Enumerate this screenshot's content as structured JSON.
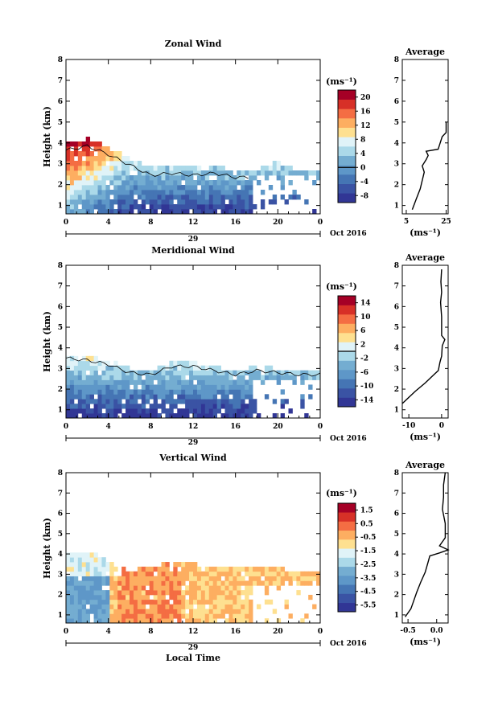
{
  "colormap": [
    "#313695",
    "#3a53a4",
    "#4575b4",
    "#5e97c8",
    "#74add1",
    "#abd9e9",
    "#e0f3f8",
    "#fee090",
    "#fdae61",
    "#f46d43",
    "#d73027",
    "#a50026"
  ],
  "chart_data": [
    {
      "type": "heatmap",
      "title": "Zonal Wind",
      "ylabel": "Height (km)",
      "xlabel": "",
      "x_ticks": [
        "0",
        "4",
        "8",
        "12",
        "16",
        "20",
        "0"
      ],
      "xlim": [
        0,
        24
      ],
      "y_ticks": [
        "1",
        "2",
        "3",
        "4",
        "5",
        "6",
        "7",
        "8"
      ],
      "ylim": [
        0.6,
        8.0
      ],
      "date_day": "29",
      "date_month": "Oct 2016",
      "unit": "(ms⁻¹)",
      "colorbar_ticks": [
        "20",
        "16",
        "12",
        "8",
        "4",
        "0",
        "-4",
        "-8"
      ],
      "colorbar_range": [
        -10,
        22
      ],
      "contour_value": 0,
      "echo_top": [
        [
          0,
          4.0
        ],
        [
          2,
          4.2
        ],
        [
          4,
          3.8
        ],
        [
          6,
          3.3
        ],
        [
          8,
          2.8
        ],
        [
          10,
          2.9
        ],
        [
          12,
          2.8
        ],
        [
          14,
          2.9
        ],
        [
          16,
          2.7
        ],
        [
          18,
          2.7
        ],
        [
          20,
          3.1
        ],
        [
          22,
          2.7
        ],
        [
          24,
          2.6
        ]
      ],
      "data_end_hour": 17.5,
      "profile": {
        "title": "Average",
        "xlabel": "(ms⁻¹)",
        "x_ticks": [
          "5",
          "25"
        ],
        "xlim": [
          3,
          26
        ],
        "points": [
          [
            8,
            0.8
          ],
          [
            10,
            1.3
          ],
          [
            12,
            1.8
          ],
          [
            13,
            2.2
          ],
          [
            14,
            2.6
          ],
          [
            13,
            2.9
          ],
          [
            15,
            3.2
          ],
          [
            16,
            3.4
          ],
          [
            15,
            3.6
          ],
          [
            21,
            3.7
          ],
          [
            22,
            4.0
          ],
          [
            23,
            4.3
          ],
          [
            25,
            4.5
          ],
          [
            25,
            5.0
          ]
        ]
      }
    },
    {
      "type": "heatmap",
      "title": "Meridional Wind",
      "ylabel": "Height (km)",
      "xlabel": "",
      "x_ticks": [
        "0",
        "4",
        "8",
        "12",
        "16",
        "20",
        "0"
      ],
      "xlim": [
        0,
        24
      ],
      "y_ticks": [
        "1",
        "2",
        "3",
        "4",
        "5",
        "6",
        "7",
        "8"
      ],
      "ylim": [
        0.6,
        8.0
      ],
      "date_day": "29",
      "date_month": "Oct 2016",
      "unit": "(ms⁻¹)",
      "colorbar_ticks": [
        "14",
        "10",
        "6",
        "2",
        "-2",
        "-6",
        "-10",
        "-14"
      ],
      "colorbar_range": [
        -16,
        16
      ],
      "contour_value": 0,
      "echo_top": [
        [
          0,
          3.7
        ],
        [
          2,
          3.6
        ],
        [
          4,
          3.4
        ],
        [
          6,
          3.0
        ],
        [
          8,
          2.9
        ],
        [
          10,
          3.3
        ],
        [
          12,
          3.3
        ],
        [
          14,
          3.1
        ],
        [
          16,
          2.9
        ],
        [
          18,
          3.1
        ],
        [
          20,
          3.0
        ],
        [
          22,
          2.9
        ],
        [
          24,
          2.9
        ]
      ],
      "data_end_hour": 17.5,
      "profile": {
        "title": "Average",
        "xlabel": "(ms⁻¹)",
        "x_ticks": [
          "-10",
          "0"
        ],
        "xlim": [
          -12,
          2
        ],
        "points": [
          [
            -12,
            1.3
          ],
          [
            -8,
            1.9
          ],
          [
            -5,
            2.3
          ],
          [
            -3,
            2.6
          ],
          [
            -1,
            2.9
          ],
          [
            -0.5,
            3.3
          ],
          [
            0,
            3.6
          ],
          [
            0.2,
            4.1
          ],
          [
            1,
            4.4
          ],
          [
            0,
            4.6
          ],
          [
            0,
            5.5
          ],
          [
            -0.3,
            6.2
          ],
          [
            0,
            6.7
          ],
          [
            -0.2,
            7.2
          ],
          [
            0,
            7.8
          ]
        ]
      }
    },
    {
      "type": "heatmap",
      "title": "Vertical Wind",
      "ylabel": "Height (km)",
      "xlabel": "Local Time",
      "x_ticks": [
        "0",
        "4",
        "8",
        "12",
        "16",
        "20",
        "0"
      ],
      "xlim": [
        0,
        24
      ],
      "y_ticks": [
        "1",
        "2",
        "3",
        "4",
        "5",
        "6",
        "7",
        "8"
      ],
      "ylim": [
        0.6,
        8.0
      ],
      "date_day": "29",
      "date_month": "Oct 2016",
      "unit": "(ms⁻¹)",
      "colorbar_ticks": [
        "1.5",
        "0.5",
        "-0.5",
        "-1.5",
        "-2.5",
        "-3.5",
        "-4.5",
        "-5.5"
      ],
      "colorbar_range": [
        -6,
        2
      ],
      "contour_value": null,
      "echo_top": [
        [
          0,
          4.0
        ],
        [
          2,
          4.2
        ],
        [
          4,
          3.6
        ],
        [
          6,
          3.2
        ],
        [
          8,
          3.4
        ],
        [
          10,
          3.7
        ],
        [
          12,
          3.5
        ],
        [
          14,
          3.4
        ],
        [
          16,
          3.3
        ],
        [
          18,
          3.4
        ],
        [
          20,
          3.3
        ],
        [
          22,
          3.2
        ],
        [
          24,
          3.1
        ]
      ],
      "data_end_hour": 17.5,
      "profile": {
        "title": "Average",
        "xlabel": "(ms⁻¹)",
        "x_ticks": [
          "-0.5",
          "0.0"
        ],
        "xlim": [
          -0.6,
          0.2
        ],
        "points": [
          [
            -0.55,
            0.9
          ],
          [
            -0.45,
            1.3
          ],
          [
            -0.4,
            1.7
          ],
          [
            -0.35,
            2.1
          ],
          [
            -0.28,
            2.6
          ],
          [
            -0.2,
            3.1
          ],
          [
            -0.15,
            3.6
          ],
          [
            -0.12,
            3.9
          ],
          [
            0.05,
            4.05
          ],
          [
            0.2,
            4.2
          ],
          [
            0.05,
            4.4
          ],
          [
            0.15,
            4.8
          ],
          [
            0.15,
            5.5
          ],
          [
            0.1,
            6.2
          ],
          [
            0.12,
            6.8
          ],
          [
            0.12,
            7.4
          ],
          [
            0.15,
            8.0
          ]
        ]
      }
    }
  ]
}
